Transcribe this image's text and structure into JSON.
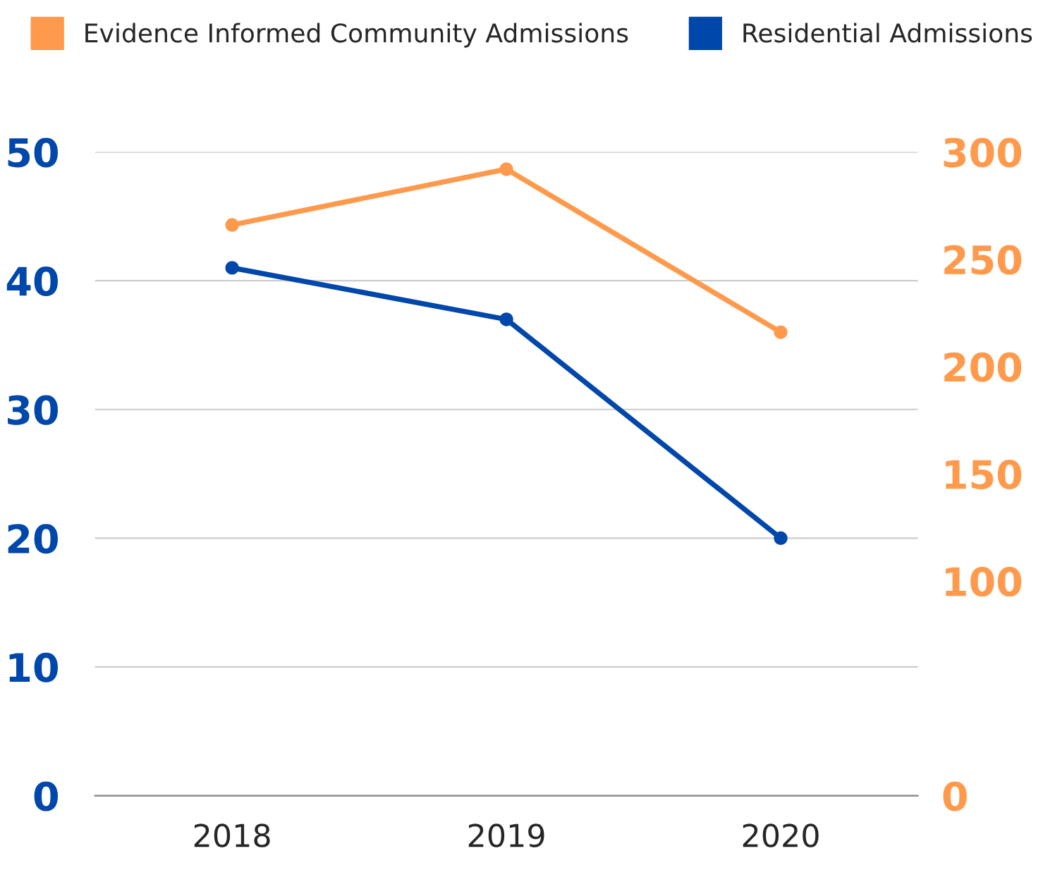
{
  "chart_data": {
    "type": "line",
    "categories": [
      "2018",
      "2019",
      "2020"
    ],
    "series": [
      {
        "name": "Evidence Informed Community Admissions",
        "color": "#ff9a4d",
        "values": [
          266,
          292,
          216
        ],
        "axis": "y2"
      },
      {
        "name": "Residential Admissions",
        "color": "#0047ab",
        "values": [
          41,
          37,
          20
        ]
      }
    ],
    "ylim": [
      0,
      50
    ],
    "yticks": [
      0,
      10,
      20,
      30,
      40,
      50
    ],
    "y2lim": [
      0,
      300
    ],
    "y2ticks": [
      0,
      100,
      150,
      200,
      250,
      300
    ],
    "grid": "y",
    "legend": "top",
    "marker": "circle",
    "line_style": "solid"
  }
}
